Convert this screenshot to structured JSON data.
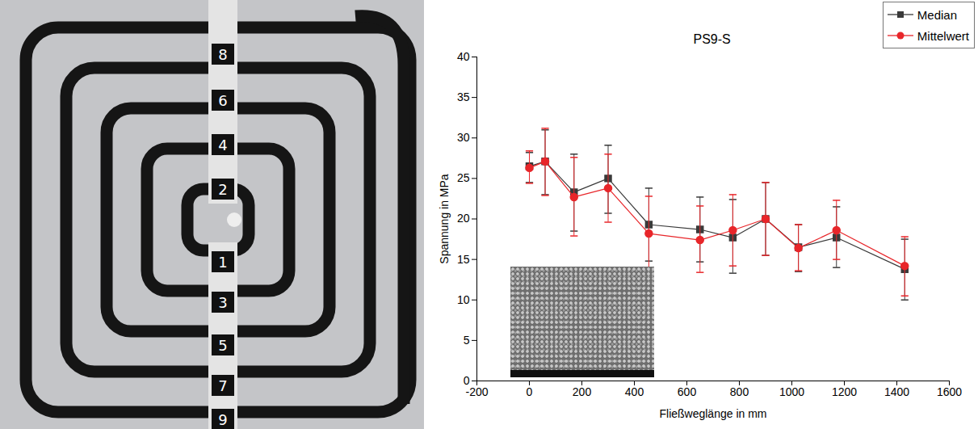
{
  "chart_data": {
    "type": "line",
    "title": "PS9-S",
    "x_label": "Fließweglänge in mm",
    "y_label": "Spannung in MPa",
    "x": [
      0,
      60,
      170,
      300,
      455,
      650,
      775,
      900,
      1025,
      1170,
      1430
    ],
    "series": [
      {
        "name": "Median",
        "color": "#3a3a3a",
        "marker": "square",
        "line_style": "solid",
        "values": [
          26.5,
          27.1,
          23.3,
          25.0,
          19.3,
          18.7,
          17.7,
          20.0,
          16.5,
          17.7,
          13.8
        ],
        "err_low": [
          24.5,
          23.0,
          18.5,
          20.7,
          14.8,
          14.7,
          13.3,
          15.5,
          13.5,
          14.0,
          10.0
        ],
        "err_high": [
          28.2,
          31.0,
          28.0,
          29.1,
          23.8,
          22.7,
          22.4,
          24.5,
          19.3,
          21.5,
          17.5
        ]
      },
      {
        "name": "Mittelwert",
        "color": "#e8262a",
        "marker": "circle",
        "line_style": "solid",
        "values": [
          26.3,
          27.1,
          22.7,
          23.8,
          18.2,
          17.4,
          18.6,
          20.0,
          16.4,
          18.6,
          14.2
        ],
        "err_low": [
          24.4,
          22.9,
          17.9,
          19.6,
          13.7,
          13.4,
          14.2,
          15.5,
          13.6,
          15.0,
          10.5
        ],
        "err_high": [
          28.4,
          31.2,
          27.6,
          28.0,
          22.8,
          21.6,
          23.0,
          24.5,
          19.3,
          22.3,
          17.8
        ]
      }
    ],
    "xlim": [
      -200,
      1600
    ],
    "xticks": [
      -200,
      0,
      200,
      400,
      600,
      800,
      1000,
      1200,
      1400,
      1600
    ],
    "ylim": [
      0,
      40
    ],
    "yticks": [
      0,
      5,
      10,
      15,
      20,
      25,
      30,
      35,
      40
    ],
    "grid": false,
    "legend": "top-right",
    "annotations": [
      "8",
      "6",
      "4",
      "2",
      "1",
      "3",
      "5",
      "7",
      "9"
    ]
  }
}
